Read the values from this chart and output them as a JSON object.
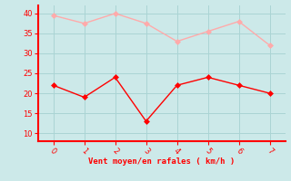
{
  "x": [
    0,
    1,
    2,
    3,
    4,
    5,
    6,
    7
  ],
  "y_mean": [
    22,
    19,
    24,
    13,
    22,
    24,
    22,
    20
  ],
  "y_gust": [
    39.5,
    37.5,
    40,
    37.5,
    33,
    35.5,
    38,
    32
  ],
  "color_mean": "#ff0000",
  "color_gust": "#ffaaaa",
  "bg_color": "#cce9e9",
  "grid_color": "#aad4d4",
  "axis_color": "#ff0000",
  "xlabel": "Vent moyen/en rafales ( km/h )",
  "xlabel_color": "#ff0000",
  "tick_color": "#ff0000",
  "ylim": [
    8,
    42
  ],
  "xlim": [
    -0.5,
    7.5
  ],
  "yticks": [
    10,
    15,
    20,
    25,
    30,
    35,
    40
  ],
  "xticks": [
    0,
    1,
    2,
    3,
    4,
    5,
    6,
    7
  ],
  "markersize": 3,
  "linewidth": 1.0
}
